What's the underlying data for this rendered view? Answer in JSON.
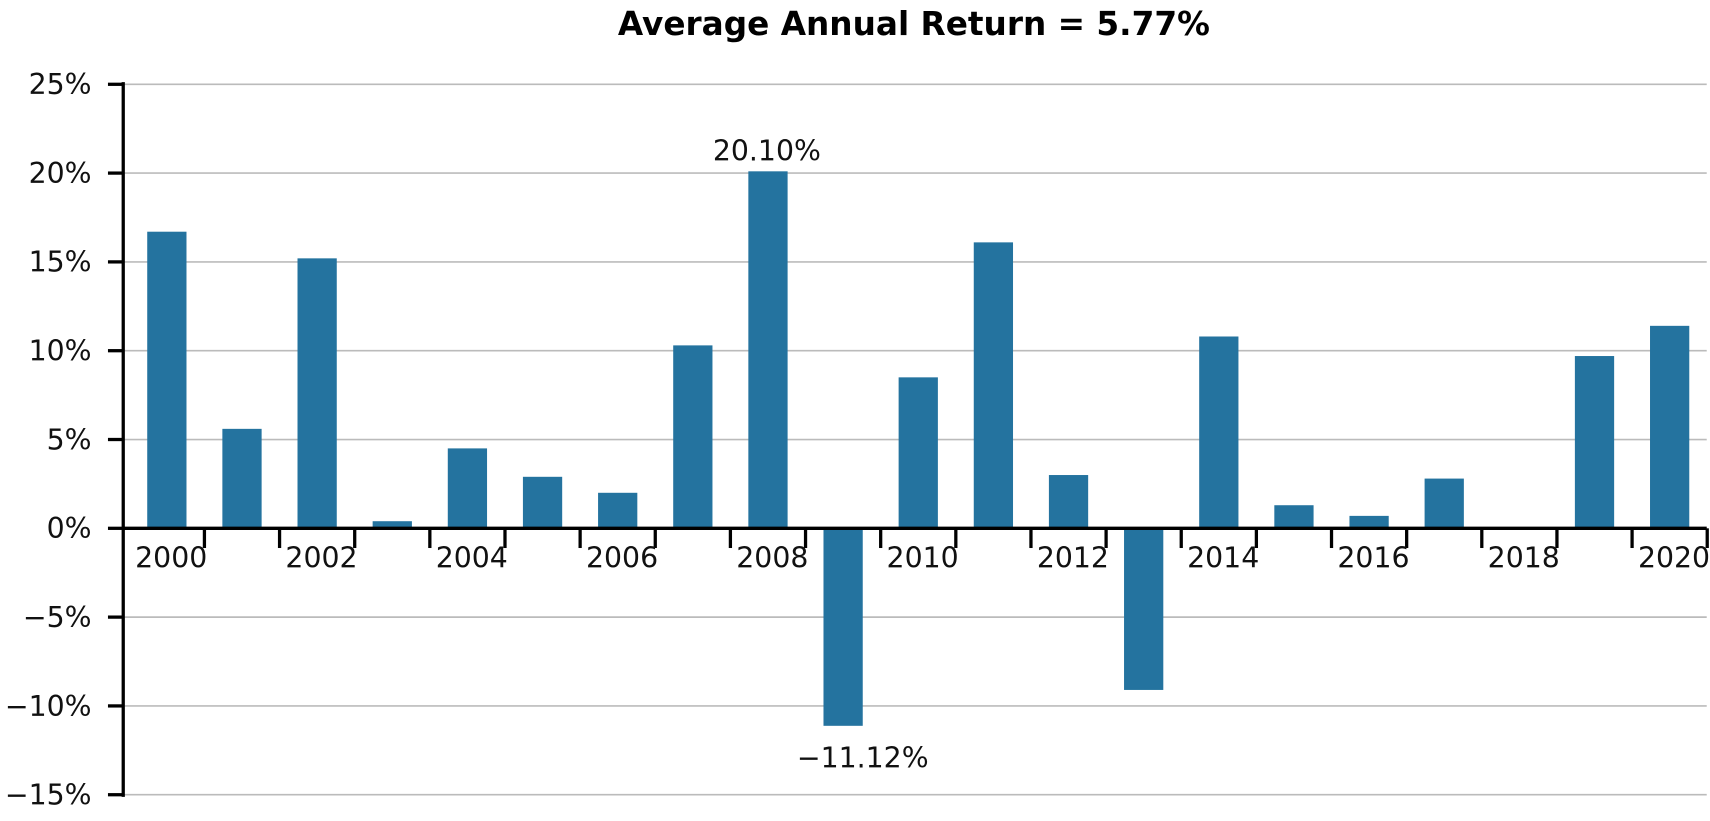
{
  "chart_data": {
    "type": "bar",
    "title": "Average Annual Return = 5.77%",
    "xlabel": "",
    "ylabel": "",
    "categories": [
      "2000",
      "2001",
      "2002",
      "2003",
      "2004",
      "2005",
      "2006",
      "2007",
      "2008",
      "2009",
      "2010",
      "2011",
      "2012",
      "2013",
      "2014",
      "2015",
      "2016",
      "2017",
      "2018",
      "2019",
      "2020"
    ],
    "values": [
      16.7,
      5.6,
      15.2,
      0.4,
      4.5,
      2.9,
      2.0,
      10.3,
      20.1,
      -11.12,
      8.5,
      16.1,
      3.0,
      -9.1,
      10.8,
      1.3,
      0.7,
      2.8,
      0,
      9.7,
      11.4
    ],
    "x_tick_labels": [
      "2000",
      "2002",
      "2004",
      "2006",
      "2008",
      "2010",
      "2012",
      "2014",
      "2016",
      "2018",
      "2020"
    ],
    "ylim": [
      -15,
      25
    ],
    "y_ticks": [
      25,
      20,
      15,
      10,
      5,
      0,
      -5,
      -10,
      -15
    ],
    "y_tick_labels": [
      "25%",
      "20%",
      "15%",
      "10%",
      "5%",
      "0%",
      "−5%",
      "−10%",
      "−15%"
    ],
    "annotations": [
      {
        "category": "2008",
        "text": "20.10%"
      },
      {
        "category": "2009",
        "text": "−11.12%"
      }
    ],
    "grid": "horizontal",
    "bar_color": "#24739f",
    "grid_color": "#bbbbbb"
  }
}
